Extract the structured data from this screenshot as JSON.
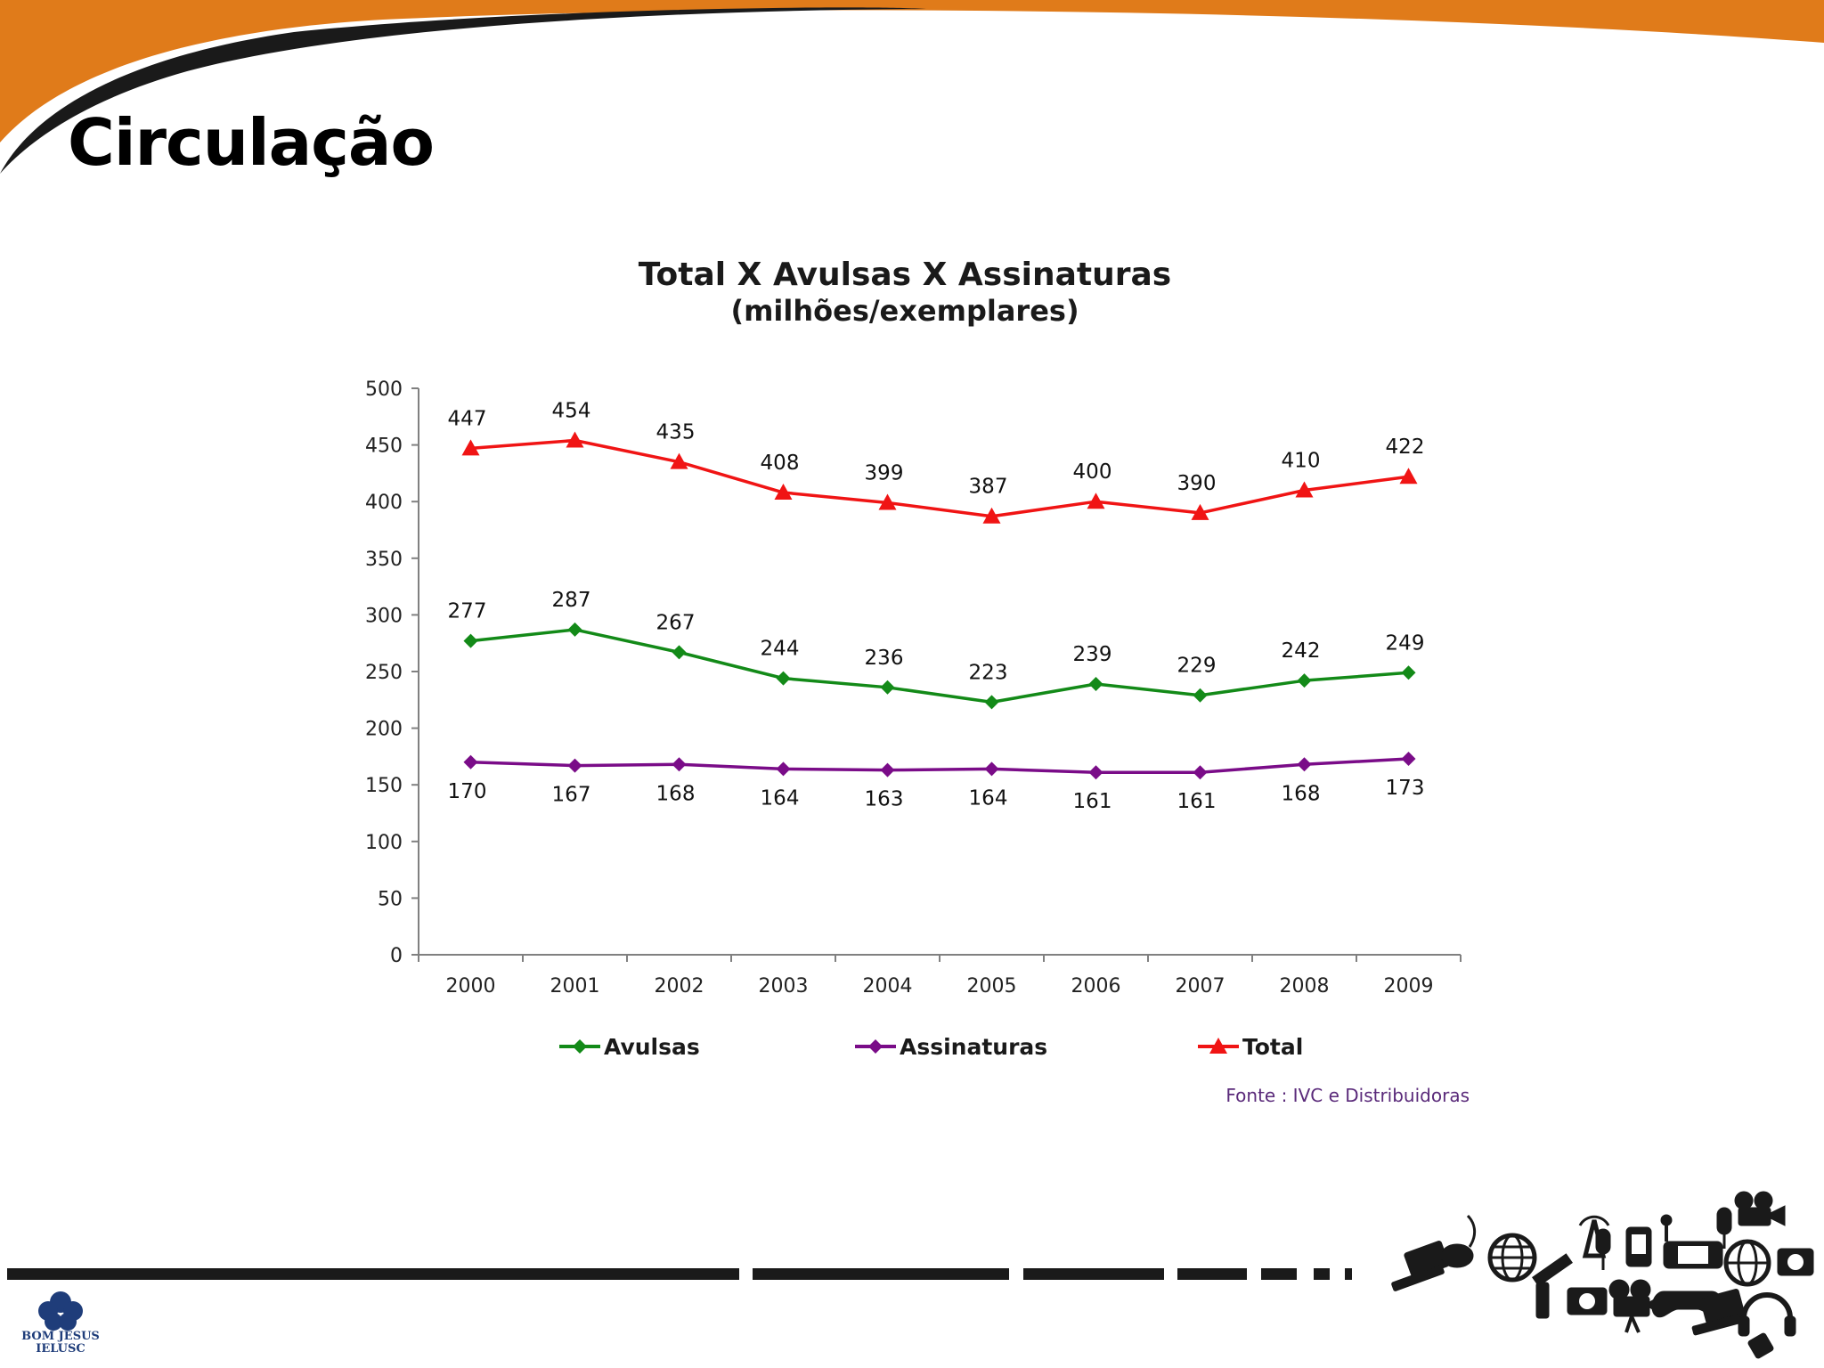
{
  "slide": {
    "title": "Circulação"
  },
  "colors": {
    "header_orange": "#e07b1a",
    "header_dark": "#1a1a1a",
    "avulsas": "#138a18",
    "assinaturas": "#7a0c88",
    "total": "#f01414",
    "axis": "#808080"
  },
  "chart_data": {
    "type": "line",
    "title": "Total X Avulsas X Assinaturas",
    "subtitle": "(milhões/exemplares)",
    "categories": [
      "2000",
      "2001",
      "2002",
      "2003",
      "2004",
      "2005",
      "2006",
      "2007",
      "2008",
      "2009"
    ],
    "ylim": [
      0,
      500
    ],
    "yticks": [
      0,
      50,
      100,
      150,
      200,
      250,
      300,
      350,
      400,
      450,
      500
    ],
    "grid": false,
    "legend_position": "bottom",
    "series": [
      {
        "name": "Avulsas",
        "marker": "diamond",
        "color": "#138a18",
        "label_side": "above",
        "values": [
          277,
          287,
          267,
          244,
          236,
          223,
          239,
          229,
          242,
          249
        ]
      },
      {
        "name": "Assinaturas",
        "marker": "diamond",
        "color": "#7a0c88",
        "label_side": "below",
        "values": [
          170,
          167,
          168,
          164,
          163,
          164,
          161,
          161,
          168,
          173
        ]
      },
      {
        "name": "Total",
        "marker": "triangle",
        "color": "#f01414",
        "label_side": "above",
        "values": [
          447,
          454,
          435,
          408,
          399,
          387,
          400,
          390,
          410,
          422
        ]
      }
    ],
    "source": "Fonte : IVC e Distribuidoras"
  },
  "logo": {
    "line1": "BOM JESUS",
    "line2": "IELUSC"
  },
  "icons": [
    "laptop-icon",
    "mouse-icon",
    "globe-icon",
    "satellite-icon",
    "antenna-icon",
    "microphone-icon",
    "phone-icon",
    "game-console-icon",
    "camera-icon",
    "movie-camera-icon",
    "gamepad-icon",
    "headphones-icon",
    "music-icon"
  ]
}
